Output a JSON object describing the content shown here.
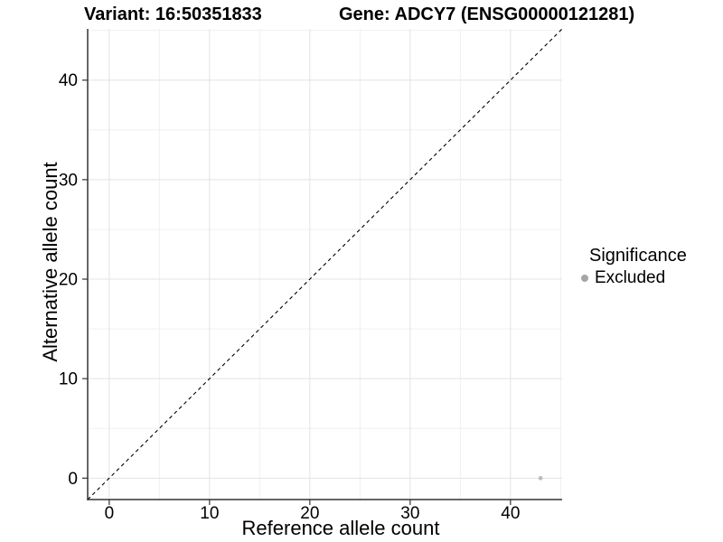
{
  "title": {
    "variant": "Variant: 16:50351833",
    "gene": "Gene: ADCY7 (ENSG00000121281)"
  },
  "chart_data": {
    "type": "scatter",
    "title": "Variant: 16:50351833 / Gene: ADCY7 (ENSG00000121281)",
    "xlabel": "Reference allele count",
    "ylabel": "Alternative allele count",
    "xlim": [
      -2.15,
      45.15
    ],
    "ylim": [
      -2.15,
      45.15
    ],
    "x_ticks": [
      0,
      10,
      20,
      30,
      40
    ],
    "y_ticks": [
      0,
      10,
      20,
      30,
      40
    ],
    "x_minor_ticks": [
      5,
      15,
      25,
      35,
      45
    ],
    "y_minor_ticks": [
      5,
      15,
      25,
      35,
      45
    ],
    "grid": "major and minor gridlines on white background",
    "series": [
      {
        "name": "Excluded",
        "color": "#bdbdbd",
        "points": [
          {
            "x": 43,
            "y": 0
          }
        ]
      }
    ],
    "reference_line": {
      "kind": "identity",
      "style": "dashed",
      "color": "#000000"
    },
    "legend": {
      "position": "right",
      "title": "Significance",
      "items": [
        {
          "label": "Excluded",
          "color": "#a6a6a6",
          "marker": "circle"
        }
      ]
    },
    "style_colors": {
      "background": "#ffffff",
      "grid_major": "#e3e3e3",
      "grid_minor": "#f0f0f0",
      "axis_line": "#333333",
      "tick_mark": "#333333",
      "tick_label": "#000000"
    }
  }
}
